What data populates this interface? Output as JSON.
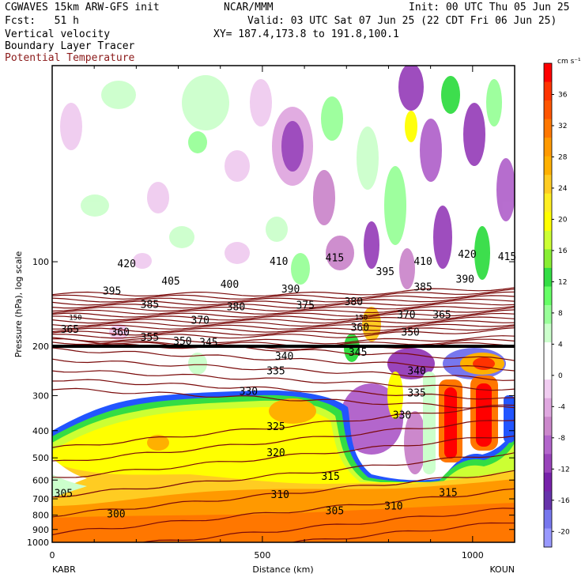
{
  "header": {
    "model": "CGWAVES 15km ARW-GFS init",
    "center": "NCAR/MMM",
    "init": "Init: 00 UTC Thu 05 Jun 25",
    "fcst": "Fcst:   51 h",
    "valid": "Valid: 03 UTC Sat 07 Jun 25 (22 CDT Fri 06 Jun 25)",
    "field1": "Vertical velocity",
    "field2": "Boundary Layer Tracer",
    "field3": "Potential Temperature",
    "xy": "XY= 187.4,173.8 to 191.8,100.1"
  },
  "colors": {
    "theta_contour": "#7a0a0a",
    "title_red": "#8b1a1a"
  },
  "chart_data": {
    "type": "heatmap",
    "xlabel": "Distance (km)",
    "ylabel": "Pressure (hPa), log scale",
    "x_ticks": [
      "0",
      "500",
      "1000"
    ],
    "x_tick_values": [
      0,
      500,
      1000
    ],
    "xlim": [
      0,
      1100
    ],
    "y_scale": "log",
    "ylim": [
      1000,
      20
    ],
    "y_ticks": [
      "100",
      "200",
      "300",
      "400",
      "500",
      "600",
      "700",
      "800",
      "900",
      "1000"
    ],
    "y_tick_values": [
      100,
      200,
      300,
      400,
      500,
      600,
      700,
      800,
      900,
      1000
    ],
    "x_endpoint_left": "KABR",
    "x_endpoint_right": "KOUN",
    "colorbar": {
      "units": "cm s⁻¹",
      "labels": [
        "36",
        "32",
        "28",
        "24",
        "20",
        "16",
        "12",
        "8",
        "4",
        "0",
        "-4",
        "-8",
        "-12",
        "-16",
        "-20"
      ],
      "label_values": [
        36,
        32,
        28,
        24,
        20,
        16,
        12,
        8,
        4,
        0,
        -4,
        -8,
        -12,
        -16,
        -20
      ],
      "colors": [
        "#ff0000",
        "#ff3300",
        "#ff5500",
        "#ff7700",
        "#ff9900",
        "#ffb000",
        "#ffcc22",
        "#ffee22",
        "#ffff00",
        "#ccff33",
        "#88ee33",
        "#33dd44",
        "#66ff66",
        "#99ff99",
        "#ccffcc",
        "#ffffff",
        "#ffffff",
        "#f0ccf0",
        "#e0a8e0",
        "#cc88cc",
        "#b366cc",
        "#9944bb",
        "#7722aa",
        "#6633aa",
        "#7777ee",
        "#9999ff"
      ]
    },
    "theta_labels": [
      {
        "text": "420",
        "x": 155,
        "p": 104
      },
      {
        "text": "410",
        "x": 517,
        "p": 102
      },
      {
        "text": "415",
        "x": 650,
        "p": 99
      },
      {
        "text": "405",
        "x": 260,
        "p": 120
      },
      {
        "text": "400",
        "x": 400,
        "p": 123
      },
      {
        "text": "395",
        "x": 120,
        "p": 130
      },
      {
        "text": "390",
        "x": 545,
        "p": 128
      },
      {
        "text": "385",
        "x": 210,
        "p": 145
      },
      {
        "text": "380",
        "x": 415,
        "p": 148
      },
      {
        "text": "375",
        "x": 580,
        "p": 146
      },
      {
        "text": "370",
        "x": 330,
        "p": 165
      },
      {
        "text": "365",
        "x": 20,
        "p": 178
      },
      {
        "text": "360",
        "x": 140,
        "p": 182
      },
      {
        "text": "355",
        "x": 210,
        "p": 190
      },
      {
        "text": "350",
        "x": 288,
        "p": 196
      },
      {
        "text": "345",
        "x": 350,
        "p": 198
      },
      {
        "text": "340",
        "x": 530,
        "p": 222
      },
      {
        "text": "335",
        "x": 510,
        "p": 250
      },
      {
        "text": "330",
        "x": 445,
        "p": 296
      },
      {
        "text": "325",
        "x": 510,
        "p": 395
      },
      {
        "text": "320",
        "x": 510,
        "p": 490
      },
      {
        "text": "315",
        "x": 640,
        "p": 595
      },
      {
        "text": "310",
        "x": 520,
        "p": 690
      },
      {
        "text": "305",
        "x": 5,
        "p": 685
      },
      {
        "text": "300",
        "x": 130,
        "p": 810
      },
      {
        "text": "305",
        "x": 650,
        "p": 790
      },
      {
        "text": "310",
        "x": 790,
        "p": 760
      },
      {
        "text": "315",
        "x": 920,
        "p": 680
      },
      {
        "text": "330",
        "x": 810,
        "p": 360
      },
      {
        "text": "335",
        "x": 845,
        "p": 300
      },
      {
        "text": "340",
        "x": 845,
        "p": 250
      },
      {
        "text": "345",
        "x": 705,
        "p": 215
      },
      {
        "text": "350",
        "x": 830,
        "p": 182
      },
      {
        "text": "360",
        "x": 710,
        "p": 175
      },
      {
        "text": "365",
        "x": 905,
        "p": 158
      },
      {
        "text": "370",
        "x": 820,
        "p": 158
      },
      {
        "text": "380",
        "x": 695,
        "p": 142
      },
      {
        "text": "385",
        "x": 860,
        "p": 126
      },
      {
        "text": "390",
        "x": 960,
        "p": 118
      },
      {
        "text": "395",
        "x": 770,
        "p": 111
      },
      {
        "text": "410",
        "x": 860,
        "p": 102
      },
      {
        "text": "420",
        "x": 965,
        "p": 96
      },
      {
        "text": "415",
        "x": 1060,
        "p": 98
      },
      {
        "text": "150",
        "x": 40,
        "p": 160
      },
      {
        "text": "150",
        "x": 720,
        "p": 160
      }
    ]
  }
}
